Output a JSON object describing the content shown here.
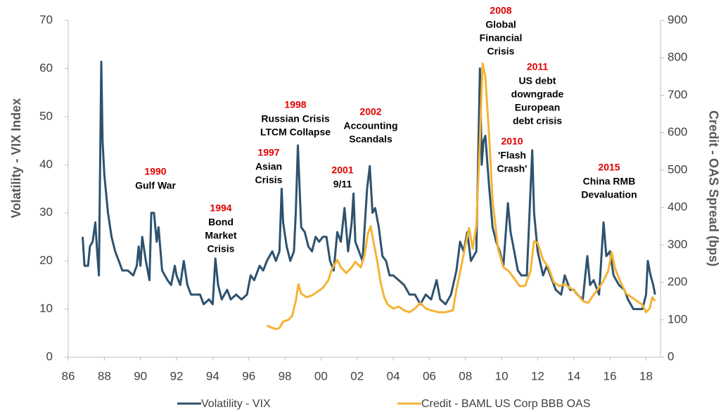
{
  "chart_data": {
    "type": "line",
    "y_label": "Volatility - VIX Index",
    "y2_label": "Credit - OAS Spread (bps)",
    "xlim": [
      1986,
      2018.8
    ],
    "xticks": [
      {
        "value": 1986,
        "label": "86"
      },
      {
        "value": 1988,
        "label": "88"
      },
      {
        "value": 1990,
        "label": "90"
      },
      {
        "value": 1992,
        "label": "92"
      },
      {
        "value": 1994,
        "label": "94"
      },
      {
        "value": 1996,
        "label": "96"
      },
      {
        "value": 1998,
        "label": "98"
      },
      {
        "value": 2000,
        "label": "00"
      },
      {
        "value": 2002,
        "label": "02"
      },
      {
        "value": 2004,
        "label": "04"
      },
      {
        "value": 2006,
        "label": "06"
      },
      {
        "value": 2008,
        "label": "08"
      },
      {
        "value": 2010,
        "label": "10"
      },
      {
        "value": 2012,
        "label": "12"
      },
      {
        "value": 2014,
        "label": "14"
      },
      {
        "value": 2016,
        "label": "16"
      },
      {
        "value": 2018,
        "label": "18"
      }
    ],
    "ylim": [
      0,
      70
    ],
    "yticks": [
      0,
      10,
      20,
      30,
      40,
      50,
      60,
      70
    ],
    "y2lim": [
      0,
      900
    ],
    "y2ticks": [
      0,
      100,
      200,
      300,
      400,
      500,
      600,
      700,
      800,
      900
    ],
    "series": [
      {
        "name": "Volatility - VIX",
        "color": "#2e526e",
        "x": [
          1986.8,
          1986.9,
          1987.1,
          1987.2,
          1987.35,
          1987.5,
          1987.6,
          1987.7,
          1987.83,
          1987.9,
          1988.0,
          1988.2,
          1988.4,
          1988.6,
          1988.8,
          1989.0,
          1989.3,
          1989.6,
          1989.8,
          1989.9,
          1990.0,
          1990.1,
          1990.3,
          1990.5,
          1990.6,
          1990.75,
          1990.9,
          1991.0,
          1991.2,
          1991.5,
          1991.7,
          1991.9,
          1992.0,
          1992.2,
          1992.4,
          1992.6,
          1992.8,
          1993.0,
          1993.3,
          1993.5,
          1993.8,
          1994.0,
          1994.15,
          1994.3,
          1994.5,
          1994.8,
          1995.0,
          1995.3,
          1995.6,
          1995.9,
          1996.1,
          1996.3,
          1996.6,
          1996.8,
          1997.0,
          1997.3,
          1997.5,
          1997.7,
          1997.82,
          1997.9,
          1998.1,
          1998.3,
          1998.5,
          1998.6,
          1998.72,
          1998.9,
          1999.1,
          1999.3,
          1999.5,
          1999.7,
          1999.9,
          2000.1,
          2000.3,
          2000.5,
          2000.7,
          2000.9,
          2001.1,
          2001.3,
          2001.5,
          2001.7,
          2001.8,
          2001.9,
          2002.1,
          2002.3,
          2002.55,
          2002.7,
          2002.85,
          2003.0,
          2003.2,
          2003.4,
          2003.6,
          2003.8,
          2004.0,
          2004.3,
          2004.6,
          2004.9,
          2005.2,
          2005.5,
          2005.8,
          2006.1,
          2006.4,
          2006.6,
          2006.9,
          2007.2,
          2007.5,
          2007.7,
          2007.9,
          2008.1,
          2008.3,
          2008.6,
          2008.8,
          2008.9,
          2009.0,
          2009.1,
          2009.3,
          2009.5,
          2009.7,
          2009.9,
          2010.1,
          2010.35,
          2010.5,
          2010.7,
          2010.9,
          2011.1,
          2011.4,
          2011.7,
          2011.8,
          2012.0,
          2012.3,
          2012.5,
          2012.8,
          2013.0,
          2013.3,
          2013.5,
          2013.8,
          2014.0,
          2014.2,
          2014.5,
          2014.75,
          2014.9,
          2015.1,
          2015.4,
          2015.65,
          2015.8,
          2016.0,
          2016.2,
          2016.5,
          2016.8,
          2017.0,
          2017.3,
          2017.5,
          2017.8,
          2018.0,
          2018.1,
          2018.25,
          2018.4,
          2018.5
        ],
        "values": [
          25,
          19,
          19,
          23,
          24,
          28,
          22,
          17,
          61.4,
          45,
          38,
          30,
          25,
          22,
          20,
          18,
          18,
          17,
          19,
          23,
          19,
          25,
          20,
          16,
          30,
          30,
          24,
          27,
          18,
          16,
          15,
          19,
          17,
          15,
          20,
          15,
          13,
          13,
          13,
          11,
          12,
          11,
          20.5,
          15,
          12,
          14,
          12,
          13,
          12,
          13,
          17,
          16,
          19,
          18,
          20,
          22,
          20,
          22,
          35,
          28,
          23,
          20,
          22,
          30,
          44,
          27,
          26,
          23,
          22,
          25,
          24,
          25,
          25,
          20,
          18,
          26,
          24,
          31,
          22,
          28,
          34,
          24,
          22,
          20,
          35,
          39.7,
          30,
          31,
          27,
          21,
          20,
          17,
          17,
          16,
          15,
          13,
          13,
          11,
          13,
          12,
          16,
          12,
          11,
          13,
          18,
          24,
          22,
          26,
          20,
          22,
          60,
          40,
          45,
          46,
          36,
          27,
          24,
          22,
          19,
          32,
          26,
          22,
          18,
          17,
          17,
          43,
          30,
          22,
          17,
          19,
          16,
          14,
          13,
          17,
          14,
          14,
          13,
          12,
          21,
          15,
          16,
          13,
          28,
          21,
          22,
          17,
          15,
          14,
          12,
          10,
          10,
          10,
          13,
          20,
          17,
          15,
          13
        ]
      },
      {
        "name": "Credit - BAML US Corp BBB OAS",
        "color": "#f5b335",
        "axis": "y2",
        "x": [
          1997.0,
          1997.2,
          1997.5,
          1997.7,
          1997.9,
          1998.2,
          1998.4,
          1998.6,
          1998.75,
          1998.9,
          1999.2,
          1999.5,
          1999.8,
          2000.1,
          2000.4,
          2000.6,
          2000.9,
          2001.1,
          2001.4,
          2001.7,
          2001.9,
          2002.2,
          2002.4,
          2002.6,
          2002.75,
          2002.9,
          2003.1,
          2003.3,
          2003.5,
          2003.7,
          2004.0,
          2004.3,
          2004.6,
          2004.9,
          2005.2,
          2005.5,
          2005.8,
          2006.1,
          2006.5,
          2006.9,
          2007.3,
          2007.5,
          2007.8,
          2008.0,
          2008.2,
          2008.4,
          2008.6,
          2008.8,
          2008.95,
          2009.1,
          2009.3,
          2009.5,
          2009.8,
          2010.1,
          2010.4,
          2010.7,
          2011.0,
          2011.3,
          2011.6,
          2011.8,
          2012.0,
          2012.3,
          2012.6,
          2012.9,
          2013.2,
          2013.5,
          2013.8,
          2014.1,
          2014.5,
          2014.8,
          2015.0,
          2015.3,
          2015.6,
          2015.9,
          2016.1,
          2016.3,
          2016.6,
          2016.9,
          2017.2,
          2017.5,
          2017.8,
          2018.0,
          2018.2,
          2018.35,
          2018.5
        ],
        "values": [
          85,
          80,
          75,
          78,
          95,
          100,
          110,
          150,
          195,
          170,
          160,
          165,
          175,
          185,
          205,
          235,
          260,
          240,
          225,
          240,
          255,
          240,
          270,
          330,
          350,
          310,
          260,
          200,
          160,
          140,
          130,
          135,
          125,
          120,
          130,
          145,
          130,
          125,
          120,
          120,
          125,
          180,
          250,
          300,
          345,
          290,
          350,
          580,
          785,
          750,
          600,
          420,
          290,
          240,
          230,
          210,
          190,
          190,
          230,
          310,
          305,
          260,
          240,
          200,
          190,
          195,
          185,
          175,
          150,
          145,
          160,
          180,
          200,
          230,
          280,
          235,
          200,
          170,
          160,
          150,
          140,
          120,
          130,
          160,
          150
        ]
      }
    ],
    "annotations": [
      {
        "year": "1990",
        "lines": [
          "Gulf War"
        ]
      },
      {
        "year": "1994",
        "lines": [
          "Bond",
          "Market",
          "Crisis"
        ]
      },
      {
        "year": "1997",
        "lines": [
          "Asian",
          "Crisis"
        ]
      },
      {
        "year": "1998",
        "lines": [
          "Russian Crisis",
          "LTCM Collapse"
        ]
      },
      {
        "year": "2001",
        "lines": [
          "9/11"
        ]
      },
      {
        "year": "2002",
        "lines": [
          "Accounting",
          "Scandals"
        ]
      },
      {
        "year": "2008",
        "lines": [
          "Global",
          "Financial",
          "Crisis"
        ]
      },
      {
        "year": "2010",
        "lines": [
          "'Flash",
          "Crash'"
        ]
      },
      {
        "year": "2011",
        "lines": [
          "US debt",
          "downgrade",
          "European",
          "debt crisis"
        ]
      },
      {
        "year": "2015",
        "lines": [
          "China RMB",
          "Devaluation"
        ]
      }
    ]
  }
}
